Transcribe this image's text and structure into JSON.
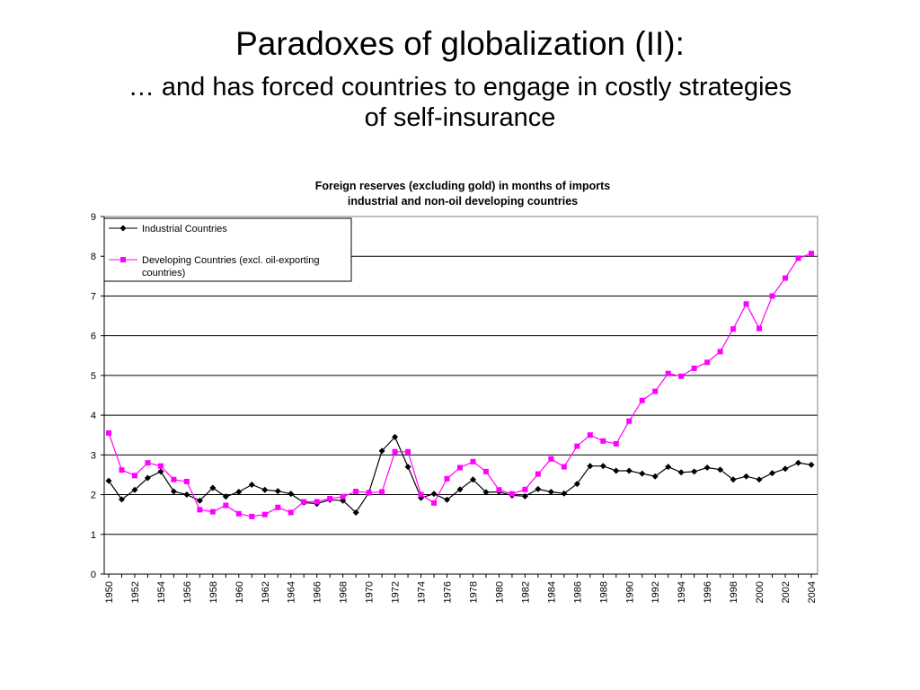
{
  "slide": {
    "title": "Paradoxes of globalization (II):",
    "subtitle_line1": "… and has forced countries to engage in costly strategies",
    "subtitle_line2": "of self-insurance"
  },
  "chart_data": {
    "type": "line",
    "title_line1": "Foreign reserves (excluding gold) in months of imports",
    "title_line2": "industrial and non-oil developing countries",
    "xlabel": "",
    "ylabel": "",
    "ylim": [
      0,
      9
    ],
    "yticks": [
      0,
      1,
      2,
      3,
      4,
      5,
      6,
      7,
      8,
      9
    ],
    "grid": true,
    "legend_position": "top-left",
    "x_tick_labels": [
      "1950",
      "1952",
      "1954",
      "1956",
      "1958",
      "1960",
      "1962",
      "1964",
      "1966",
      "1968",
      "1970",
      "1972",
      "1974",
      "1976",
      "1978",
      "1980",
      "1982",
      "1984",
      "1986",
      "1988",
      "1990",
      "1992",
      "1994",
      "1996",
      "1998",
      "2000",
      "2002",
      "2004"
    ],
    "x": [
      1950,
      1951,
      1952,
      1953,
      1954,
      1955,
      1956,
      1957,
      1958,
      1959,
      1960,
      1961,
      1962,
      1963,
      1964,
      1965,
      1966,
      1967,
      1968,
      1969,
      1970,
      1971,
      1972,
      1973,
      1974,
      1975,
      1976,
      1977,
      1978,
      1979,
      1980,
      1981,
      1982,
      1983,
      1984,
      1985,
      1986,
      1987,
      1988,
      1989,
      1990,
      1991,
      1992,
      1993,
      1994,
      1995,
      1996,
      1997,
      1998,
      1999,
      2000,
      2001,
      2002,
      2003,
      2004
    ],
    "series": [
      {
        "name": "Industrial Countries",
        "color": "#000000",
        "marker": "diamond",
        "values": [
          2.35,
          1.88,
          2.12,
          2.42,
          2.58,
          2.08,
          2.0,
          1.85,
          2.17,
          1.95,
          2.07,
          2.25,
          2.12,
          2.09,
          2.02,
          1.8,
          1.77,
          1.87,
          1.85,
          1.55,
          2.05,
          3.1,
          3.45,
          2.7,
          1.92,
          2.02,
          1.87,
          2.13,
          2.38,
          2.06,
          2.07,
          1.98,
          1.96,
          2.14,
          2.07,
          2.03,
          2.27,
          2.72,
          2.72,
          2.6,
          2.6,
          2.53,
          2.46,
          2.7,
          2.56,
          2.58,
          2.68,
          2.63,
          2.38,
          2.46,
          2.38,
          2.54,
          2.65,
          2.8,
          2.75
        ]
      },
      {
        "name": "Developing Countries (excl. oil-exporting countries)",
        "legend_line1": "Developing Countries (excl. oil-exporting",
        "legend_line2": "countries)",
        "color": "#ff00ff",
        "marker": "square",
        "values": [
          3.55,
          2.62,
          2.48,
          2.8,
          2.72,
          2.38,
          2.33,
          1.62,
          1.57,
          1.73,
          1.52,
          1.45,
          1.5,
          1.68,
          1.55,
          1.82,
          1.82,
          1.9,
          1.95,
          2.08,
          2.05,
          2.07,
          3.08,
          3.08,
          2.0,
          1.79,
          2.4,
          2.68,
          2.83,
          2.58,
          2.12,
          2.02,
          2.13,
          2.52,
          2.9,
          2.7,
          3.22,
          3.5,
          3.35,
          3.28,
          3.85,
          4.37,
          4.6,
          5.05,
          4.98,
          5.18,
          5.33,
          5.6,
          6.17,
          6.8,
          6.18,
          7.0,
          7.45,
          7.95,
          8.07
        ]
      }
    ]
  }
}
